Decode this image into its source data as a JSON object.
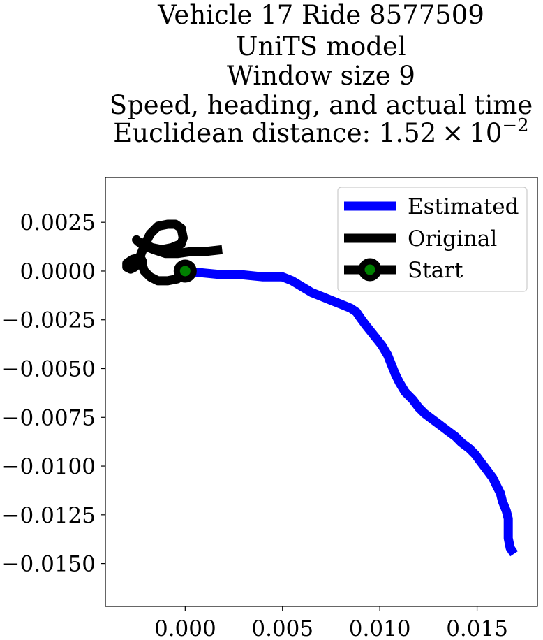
{
  "chart_data": {
    "type": "line",
    "title_lines": [
      "Vehicle 17 Ride 8577509",
      "UniTS model",
      "Window size 9",
      "Speed, heading, and actual time"
    ],
    "title_distance": {
      "prefix": "Euclidean distance: ",
      "mantissa": "1.52",
      "times": "×",
      "base": "10",
      "exponent": "−2"
    },
    "xlabel": "",
    "ylabel": "",
    "xlim": [
      -0.0041,
      0.0181
    ],
    "ylim": [
      -0.0172,
      0.0048
    ],
    "xticks": [
      0.0,
      0.005,
      0.01,
      0.015
    ],
    "xtick_labels": [
      "0.000",
      "0.005",
      "0.010",
      "0.015"
    ],
    "yticks": [
      0.0025,
      0.0,
      -0.0025,
      -0.005,
      -0.0075,
      -0.01,
      -0.0125,
      -0.015
    ],
    "ytick_labels": [
      "0.0025",
      "0.0000",
      "−0.0025",
      "−0.0050",
      "−0.0075",
      "−0.0100",
      "−0.0125",
      "−0.0150"
    ],
    "grid": false,
    "legend_position": "top-right",
    "series": [
      {
        "name": "Estimated",
        "color": "#0000ff",
        "x": [
          0.0,
          0.001,
          0.002,
          0.003,
          0.004,
          0.005,
          0.0055,
          0.006,
          0.0065,
          0.007,
          0.0075,
          0.008,
          0.0085,
          0.0088,
          0.009,
          0.0093,
          0.0097,
          0.0101,
          0.0104,
          0.0106,
          0.0108,
          0.011,
          0.0113,
          0.0117,
          0.012,
          0.0123,
          0.0127,
          0.0131,
          0.0135,
          0.0139,
          0.0142,
          0.0146,
          0.0149,
          0.0152,
          0.0155,
          0.0158,
          0.016,
          0.0162,
          0.0163,
          0.0165,
          0.0166,
          0.0166,
          0.0166,
          0.0167,
          0.0169
        ],
        "y": [
          0.0,
          -0.0001,
          -0.0002,
          -0.0002,
          -0.0003,
          -0.0003,
          -0.0005,
          -0.0008,
          -0.0011,
          -0.0013,
          -0.0015,
          -0.0017,
          -0.0019,
          -0.0021,
          -0.0024,
          -0.0028,
          -0.0033,
          -0.0038,
          -0.0043,
          -0.0048,
          -0.0053,
          -0.0057,
          -0.0062,
          -0.0066,
          -0.007,
          -0.0073,
          -0.0076,
          -0.0079,
          -0.0082,
          -0.0085,
          -0.0088,
          -0.0091,
          -0.0094,
          -0.0098,
          -0.0102,
          -0.0106,
          -0.011,
          -0.0114,
          -0.0118,
          -0.0123,
          -0.0127,
          -0.0132,
          -0.0137,
          -0.0142,
          -0.0145
        ]
      },
      {
        "name": "Original",
        "color": "#000000",
        "x": [
          0.0,
          -0.0004,
          -0.0009,
          -0.0014,
          -0.0018,
          -0.0021,
          -0.0022,
          -0.0022,
          -0.0023,
          -0.0027,
          -0.003,
          -0.003,
          -0.0028,
          -0.0026,
          -0.0024,
          -0.0023,
          -0.0021,
          -0.0018,
          -0.0014,
          -0.0009,
          -0.0005,
          -0.0002,
          -0.0001,
          -0.0002,
          -0.0007,
          -0.0012,
          -0.0017,
          -0.0021,
          -0.0024,
          -0.0025,
          -0.0024,
          -0.0021,
          -0.0016,
          -0.001,
          -0.0004,
          0.0003,
          0.001,
          0.0019
        ],
        "y": [
          0.0,
          -0.0004,
          -0.0005,
          -0.0005,
          -0.0003,
          0.0,
          0.0003,
          0.0005,
          0.0007,
          0.0006,
          0.0004,
          0.0002,
          0.0001,
          0.0002,
          0.0004,
          0.0008,
          0.0013,
          0.0019,
          0.0023,
          0.0024,
          0.0024,
          0.0022,
          0.0017,
          0.0014,
          0.0012,
          0.0011,
          0.0012,
          0.0014,
          0.0015,
          0.0016,
          0.0015,
          0.0013,
          0.0011,
          0.0009,
          0.0009,
          0.001,
          0.001,
          0.0011
        ]
      }
    ],
    "start": {
      "name": "Start",
      "x": 0.0,
      "y": 0.0,
      "marker_color": "#008000",
      "edge_color": "#000000"
    }
  }
}
